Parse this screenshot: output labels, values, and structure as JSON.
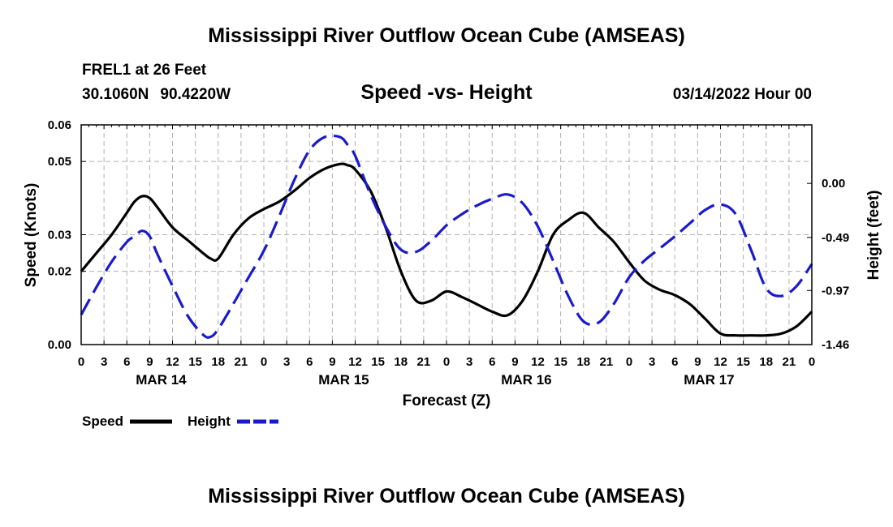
{
  "header": {
    "main_title": "Mississippi River Outflow Ocean Cube (AMSEAS)",
    "station": "FREL1 at 26 Feet",
    "lat": "30.1060N",
    "lon": "90.4220W",
    "subtitle": "Speed -vs- Height",
    "date_hour": "03/14/2022 Hour 00"
  },
  "footer": {
    "repeat_title": "Mississippi River Outflow Ocean Cube (AMSEAS)"
  },
  "colors": {
    "speed": "#000000",
    "height": "#1a1acc",
    "grid": "#b0b0b0"
  },
  "chart_data": {
    "type": "line",
    "title": "Speed -vs- Height",
    "xlabel": "Forecast (Z)",
    "ylabel": "Speed (Knots)",
    "y2label": "Height (feet)",
    "x_unit": "hours from 03/14/2022 00Z",
    "xlim": [
      0,
      96
    ],
    "x_tick_labels": [
      "0",
      "3",
      "6",
      "9",
      "12",
      "15",
      "18",
      "21",
      "0",
      "3",
      "6",
      "9",
      "12",
      "15",
      "18",
      "21",
      "0",
      "3",
      "6",
      "9",
      "12",
      "15",
      "18",
      "21",
      "0",
      "3",
      "6",
      "9",
      "12",
      "15",
      "18",
      "21",
      "0"
    ],
    "date_labels": [
      {
        "label": "MAR 14",
        "hour": 10.5
      },
      {
        "label": "MAR 15",
        "hour": 34.5
      },
      {
        "label": "MAR 16",
        "hour": 58.5
      },
      {
        "label": "MAR 17",
        "hour": 82.5
      }
    ],
    "ylim": [
      0,
      0.06
    ],
    "y_ticks": [
      0.0,
      0.02,
      0.03,
      0.05,
      0.06
    ],
    "y_tick_labels": [
      "0.00",
      "0.02",
      "0.03",
      "0.05",
      "0.06"
    ],
    "y2lim": [
      -1.46,
      0.53
    ],
    "y2_tick_labels": [
      "0.00",
      "-0.49",
      "-0.97",
      "-1.46"
    ],
    "y2_ticks": [
      0.0,
      -0.49,
      -0.97,
      -1.46
    ],
    "grid": true,
    "legend": {
      "position": "bottom-left",
      "entries": [
        "Speed",
        "Height"
      ]
    },
    "series": [
      {
        "name": "Speed",
        "axis": "left",
        "style": "solid",
        "x": [
          0,
          2,
          4,
          6,
          7,
          8,
          9,
          10,
          12,
          14,
          16,
          17,
          18,
          20,
          22,
          24,
          26,
          28,
          30,
          32,
          34,
          35,
          36,
          38,
          40,
          42,
          44,
          46,
          48,
          50,
          52,
          54,
          56,
          58,
          60,
          62,
          64,
          66,
          68,
          70,
          72,
          74,
          76,
          78,
          80,
          82,
          84,
          86,
          88,
          90,
          92,
          94,
          96
        ],
        "y": [
          0.02,
          0.025,
          0.03,
          0.036,
          0.039,
          0.0405,
          0.04,
          0.0375,
          0.032,
          0.0285,
          0.025,
          0.0235,
          0.0235,
          0.03,
          0.0345,
          0.037,
          0.039,
          0.042,
          0.0455,
          0.048,
          0.0493,
          0.049,
          0.0478,
          0.042,
          0.032,
          0.02,
          0.012,
          0.012,
          0.0145,
          0.013,
          0.011,
          0.009,
          0.008,
          0.012,
          0.02,
          0.03,
          0.034,
          0.036,
          0.032,
          0.028,
          0.0225,
          0.0175,
          0.015,
          0.0135,
          0.011,
          0.007,
          0.003,
          0.0025,
          0.0025,
          0.0025,
          0.003,
          0.005,
          0.009
        ]
      },
      {
        "name": "Height",
        "axis": "right",
        "style": "dashed",
        "x": [
          0,
          2,
          4,
          6,
          7,
          8,
          9,
          10,
          12,
          14,
          16,
          17,
          18,
          20,
          22,
          24,
          26,
          28,
          30,
          32,
          34,
          35,
          36,
          38,
          40,
          42,
          44,
          46,
          48,
          50,
          52,
          54,
          56,
          58,
          60,
          62,
          64,
          66,
          68,
          70,
          72,
          74,
          76,
          78,
          80,
          82,
          84,
          86,
          88,
          90,
          92,
          94,
          96
        ],
        "y": [
          -1.19,
          -0.94,
          -0.71,
          -0.53,
          -0.48,
          -0.43,
          -0.48,
          -0.64,
          -0.93,
          -1.2,
          -1.37,
          -1.39,
          -1.32,
          -1.09,
          -0.85,
          -0.61,
          -0.3,
          0.03,
          0.3,
          0.42,
          0.42,
          0.35,
          0.25,
          -0.1,
          -0.39,
          -0.6,
          -0.62,
          -0.52,
          -0.38,
          -0.28,
          -0.2,
          -0.14,
          -0.1,
          -0.18,
          -0.39,
          -0.7,
          -1.02,
          -1.25,
          -1.26,
          -1.09,
          -0.85,
          -0.7,
          -0.59,
          -0.48,
          -0.36,
          -0.24,
          -0.19,
          -0.28,
          -0.6,
          -0.95,
          -1.02,
          -0.93,
          -0.73
        ]
      }
    ]
  }
}
